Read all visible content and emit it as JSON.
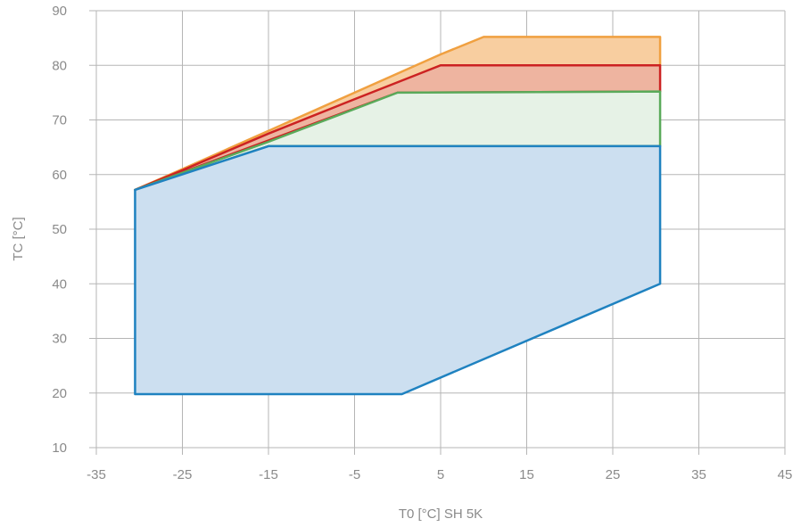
{
  "chart_data": {
    "type": "area",
    "title": "",
    "xlabel": "T0 [°C] SH 5K",
    "ylabel": "TC [°C]",
    "xlim": [
      -35,
      45
    ],
    "ylim": [
      10,
      90
    ],
    "x_ticks": [
      "-35",
      "-25",
      "-15",
      "-5",
      "5",
      "15",
      "25",
      "35",
      "45"
    ],
    "y_ticks": [
      "10",
      "20",
      "30",
      "40",
      "50",
      "60",
      "70",
      "80",
      "90"
    ],
    "grid": true,
    "series": [
      {
        "color": "#f0a040",
        "fill": "#f8ceA0",
        "points": [
          [
            -30.5,
            57.2
          ],
          [
            -25,
            61
          ],
          [
            -15,
            68
          ],
          [
            -5,
            75
          ],
          [
            5,
            82
          ],
          [
            10,
            85.2
          ],
          [
            30.5,
            85.2
          ],
          [
            30.5,
            80
          ],
          [
            5,
            80
          ],
          [
            -30.5,
            57.2
          ]
        ]
      },
      {
        "color": "#cc2222",
        "fill": "#eeb4a0",
        "points": [
          [
            -30.5,
            57.2
          ],
          [
            -25,
            60.8
          ],
          [
            -15,
            67.5
          ],
          [
            -5,
            73.8
          ],
          [
            5,
            80
          ],
          [
            30.5,
            80
          ],
          [
            30.5,
            75.2
          ],
          [
            0,
            75
          ],
          [
            -30.5,
            57.2
          ]
        ]
      },
      {
        "color": "#5aaa5a",
        "fill": "#e6f2e6",
        "points": [
          [
            -30.5,
            57.2
          ],
          [
            -15,
            66
          ],
          [
            0,
            75
          ],
          [
            30.5,
            75.2
          ],
          [
            30.5,
            65.2
          ],
          [
            -15,
            65.2
          ],
          [
            -30.5,
            57.2
          ]
        ]
      },
      {
        "color": "#1f82c0",
        "fill": "#ccdff0",
        "points": [
          [
            -30.5,
            57.2
          ],
          [
            -15,
            65.2
          ],
          [
            30.5,
            65.2
          ],
          [
            30.5,
            40
          ],
          [
            0.5,
            19.8
          ],
          [
            -30.5,
            19.8
          ],
          [
            -30.5,
            57.2
          ]
        ]
      }
    ]
  }
}
